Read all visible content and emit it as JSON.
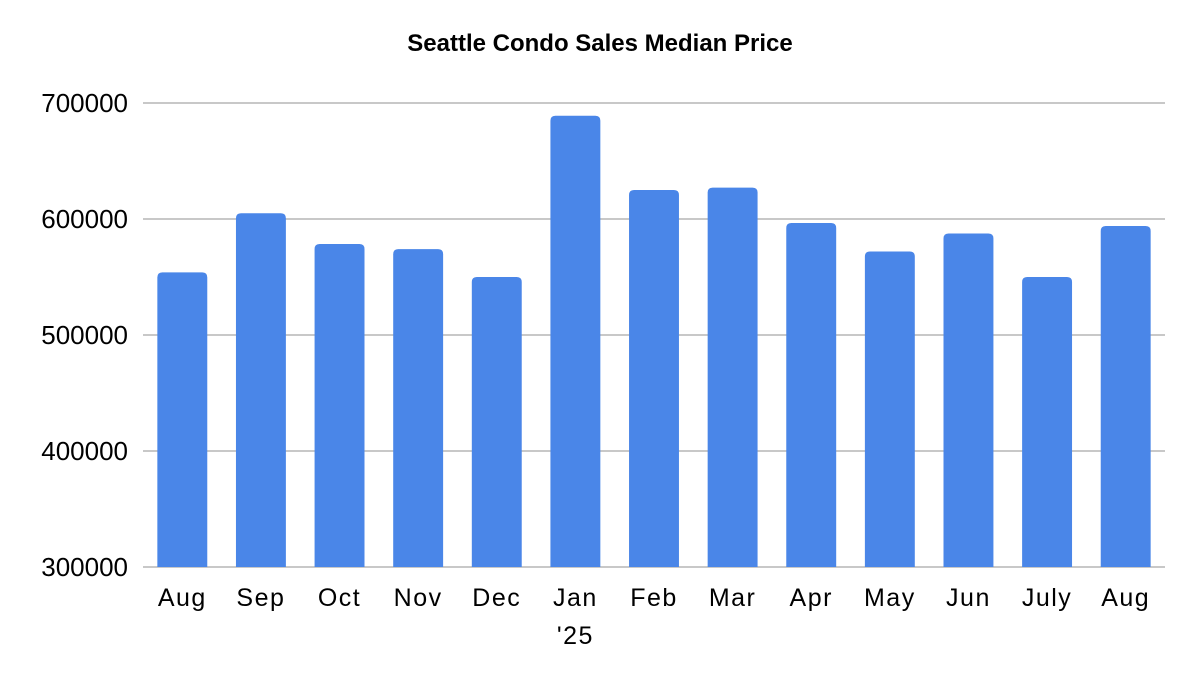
{
  "chart_data": {
    "type": "bar",
    "title": "Seattle Condo Sales Median Price",
    "xlabel": "",
    "ylabel": "",
    "categories": [
      "Aug",
      "Sep",
      "Oct",
      "Nov",
      "Dec",
      "Jan\n'25",
      "Feb",
      "Mar",
      "Apr",
      "May",
      "Jun",
      "July",
      "Aug"
    ],
    "values": [
      554000,
      605000,
      578500,
      574000,
      550000,
      689000,
      625000,
      627000,
      596500,
      572000,
      587500,
      550000,
      594000
    ],
    "ylim": [
      300000,
      700000
    ],
    "yticks": [
      300000,
      400000,
      500000,
      600000,
      700000
    ],
    "grid": true,
    "legend": "none",
    "colors": {
      "bar": "#4a86e8",
      "grid": "#c8c8c8",
      "text": "#000000"
    }
  }
}
